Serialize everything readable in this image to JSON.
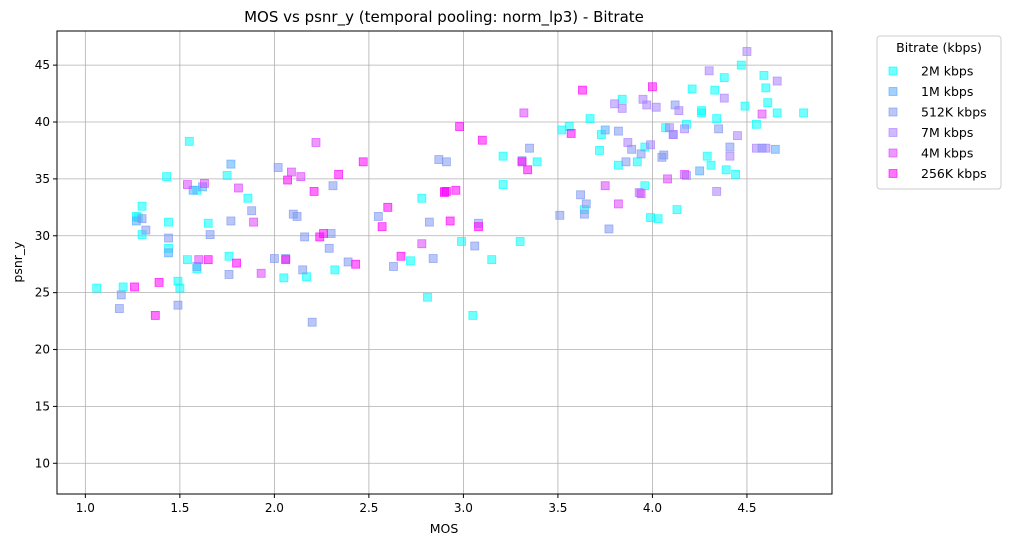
{
  "chart_data": {
    "type": "scatter",
    "title": "MOS vs psnr_y (temporal pooling: norm_lp3) - Bitrate",
    "xlabel": "MOS",
    "ylabel": "psnr_y",
    "xlim": [
      0.85,
      4.95
    ],
    "ylim": [
      7.3,
      48.0
    ],
    "xticks": [
      1.0,
      1.5,
      2.0,
      2.5,
      3.0,
      3.5,
      4.0,
      4.5
    ],
    "xtick_labels": [
      "1.0",
      "1.5",
      "2.0",
      "2.5",
      "3.0",
      "3.5",
      "4.0",
      "4.5"
    ],
    "yticks": [
      10,
      15,
      20,
      25,
      30,
      35,
      40,
      45
    ],
    "ytick_labels": [
      "10",
      "15",
      "20",
      "25",
      "30",
      "35",
      "40",
      "45"
    ],
    "grid": true,
    "marker": "square",
    "legend": {
      "title": "Bitrate (kbps)",
      "placement": "outside-top-right"
    },
    "series": [
      {
        "name": "2M kbps",
        "color": "#00ffff",
        "x": [
          1.06,
          1.2,
          1.27,
          1.28,
          1.3,
          1.3,
          1.43,
          1.44,
          1.44,
          1.49,
          1.5,
          1.54,
          1.55,
          1.59,
          1.59,
          1.65,
          1.75,
          1.76,
          1.86,
          2.05,
          2.17,
          2.32,
          2.72,
          2.78,
          2.81,
          2.99,
          3.05,
          3.15,
          3.21,
          3.21,
          3.3,
          3.39,
          3.52,
          3.56,
          3.64,
          3.67,
          3.72,
          3.73,
          3.82,
          3.84,
          3.92,
          3.96,
          3.96,
          3.99,
          4.03,
          4.07,
          4.13,
          4.18,
          4.21,
          4.26,
          4.26,
          4.29,
          4.31,
          4.33,
          4.34,
          4.38,
          4.39,
          4.44,
          4.47,
          4.49,
          4.55,
          4.59,
          4.6,
          4.61,
          4.66,
          4.8
        ],
        "y": [
          25.4,
          25.5,
          31.7,
          31.6,
          30.1,
          32.6,
          35.2,
          31.2,
          28.9,
          26.0,
          25.4,
          27.9,
          38.3,
          34.0,
          27.1,
          31.1,
          35.3,
          28.2,
          33.3,
          26.3,
          26.4,
          27.0,
          27.8,
          33.3,
          24.6,
          29.5,
          23.0,
          27.9,
          37.0,
          34.5,
          29.5,
          36.5,
          39.3,
          39.6,
          32.3,
          40.3,
          37.5,
          38.9,
          36.2,
          42.0,
          36.5,
          34.4,
          37.8,
          31.6,
          31.5,
          39.5,
          32.3,
          39.8,
          42.9,
          40.8,
          41.0,
          37.0,
          36.2,
          42.8,
          40.3,
          43.9,
          35.8,
          35.4,
          45.0,
          41.4,
          39.8,
          44.1,
          43.0,
          41.7,
          40.8,
          40.8
        ]
      },
      {
        "name": "1M kbps",
        "color": "#55aaff",
        "x": [
          1.27,
          1.44,
          1.59,
          1.62,
          1.57,
          1.77,
          3.75,
          4.25,
          4.58,
          4.65
        ],
        "y": [
          31.3,
          28.5,
          27.3,
          34.3,
          34.0,
          36.3,
          39.3,
          35.7,
          37.7,
          37.6
        ]
      },
      {
        "name": "512K kbps",
        "color": "#7f98f0",
        "x": [
          1.18,
          1.19,
          1.3,
          1.32,
          1.44,
          1.49,
          1.66,
          1.76,
          1.77,
          1.88,
          2.0,
          2.02,
          2.06,
          2.1,
          2.12,
          2.15,
          2.16,
          2.2,
          2.29,
          2.3,
          2.31,
          2.39,
          2.55,
          2.63,
          2.82,
          2.84,
          2.87,
          2.91,
          3.06,
          3.08,
          3.31,
          3.35,
          3.51,
          3.62,
          3.64,
          3.65,
          3.77,
          3.82,
          3.86,
          3.89,
          3.94,
          4.05,
          4.06,
          4.11,
          4.12,
          4.18,
          4.35,
          4.41
        ],
        "y": [
          23.6,
          24.8,
          31.5,
          30.5,
          29.8,
          23.9,
          30.1,
          26.6,
          31.3,
          32.2,
          28.0,
          36.0,
          28.0,
          31.9,
          31.7,
          27.0,
          29.9,
          22.4,
          28.9,
          30.2,
          34.4,
          27.7,
          31.7,
          27.3,
          31.2,
          28.0,
          36.7,
          36.5,
          29.1,
          31.1,
          36.6,
          37.7,
          31.8,
          33.6,
          31.9,
          32.8,
          30.6,
          39.2,
          36.5,
          37.6,
          37.2,
          36.9,
          37.1,
          38.9,
          41.5,
          35.3,
          39.4,
          37.8
        ]
      },
      {
        "name": "7M kbps",
        "color": "#aa80ff",
        "x": [
          3.8,
          3.84,
          3.87,
          3.93,
          3.95,
          3.97,
          3.99,
          4.02,
          4.09,
          4.11,
          4.14,
          4.17,
          4.3,
          4.34,
          4.38,
          4.41,
          4.45,
          4.5,
          4.55,
          4.6,
          4.66
        ],
        "y": [
          41.6,
          41.2,
          38.2,
          33.8,
          42.0,
          41.5,
          38.0,
          41.3,
          39.5,
          38.9,
          41.0,
          39.4,
          44.5,
          33.9,
          42.1,
          37.0,
          38.8,
          46.2,
          37.7,
          37.7,
          43.6
        ]
      },
      {
        "name": "4M kbps",
        "color": "#dd44ff",
        "x": [
          1.54,
          1.6,
          1.63,
          1.81,
          1.89,
          1.93,
          2.09,
          2.14,
          2.22,
          2.78,
          2.9,
          3.32,
          3.75,
          3.82,
          3.94,
          4.08,
          4.17,
          4.58
        ],
        "y": [
          34.5,
          27.9,
          34.6,
          34.2,
          31.2,
          26.7,
          35.6,
          35.2,
          38.2,
          29.3,
          33.9,
          40.8,
          34.4,
          32.8,
          33.7,
          35.0,
          35.4,
          40.7
        ]
      },
      {
        "name": "256K kbps",
        "color": "#ff00ff",
        "x": [
          1.26,
          1.37,
          1.39,
          1.65,
          1.8,
          2.06,
          2.07,
          2.21,
          2.24,
          2.26,
          2.34,
          2.43,
          2.47,
          2.57,
          2.6,
          2.67,
          2.9,
          2.91,
          2.93,
          2.96,
          2.98,
          3.08,
          3.1,
          3.31,
          3.34,
          3.57,
          3.63,
          4.0
        ],
        "y": [
          25.5,
          23.0,
          25.9,
          27.9,
          27.6,
          27.9,
          34.9,
          33.9,
          29.9,
          30.2,
          35.4,
          27.5,
          36.5,
          30.8,
          32.5,
          28.2,
          33.8,
          33.9,
          31.3,
          34.0,
          39.6,
          30.8,
          38.4,
          36.5,
          35.8,
          39.0,
          42.8,
          43.1
        ]
      }
    ]
  }
}
